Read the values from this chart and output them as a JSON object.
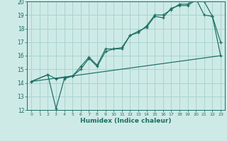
{
  "xlabel": "Humidex (Indice chaleur)",
  "ylabel": "",
  "bg_color": "#ceeae7",
  "grid_color": "#a8d4cf",
  "line_color": "#1a6e62",
  "xlim": [
    -0.5,
    23.5
  ],
  "ylim": [
    12,
    20
  ],
  "xticks": [
    0,
    1,
    2,
    3,
    4,
    5,
    6,
    7,
    8,
    9,
    10,
    11,
    12,
    13,
    14,
    15,
    16,
    17,
    18,
    19,
    20,
    21,
    22,
    23
  ],
  "yticks": [
    12,
    13,
    14,
    15,
    16,
    17,
    18,
    19,
    20
  ],
  "line1_x": [
    0,
    2,
    3,
    4,
    5,
    6,
    7,
    8,
    9,
    10,
    11,
    12,
    13,
    14,
    15,
    16,
    17,
    18,
    19,
    20,
    21,
    22,
    23
  ],
  "line1_y": [
    14.1,
    14.6,
    12.1,
    14.3,
    14.5,
    15.0,
    15.8,
    15.2,
    16.3,
    16.5,
    16.5,
    17.5,
    17.8,
    18.1,
    18.9,
    18.8,
    19.5,
    19.7,
    19.7,
    20.1,
    20.0,
    18.9,
    17.0
  ],
  "line2_x": [
    0,
    2,
    3,
    4,
    5,
    6,
    7,
    8,
    9,
    10,
    11,
    12,
    13,
    14,
    15,
    16,
    17,
    18,
    19,
    20,
    21,
    22,
    23
  ],
  "line2_y": [
    14.1,
    14.6,
    14.3,
    14.4,
    14.5,
    15.2,
    15.9,
    15.3,
    16.5,
    16.5,
    16.6,
    17.5,
    17.7,
    18.2,
    19.0,
    19.0,
    19.4,
    19.8,
    19.8,
    20.2,
    19.0,
    18.9,
    16.0
  ],
  "line3_x": [
    0,
    23
  ],
  "line3_y": [
    14.1,
    16.0
  ]
}
